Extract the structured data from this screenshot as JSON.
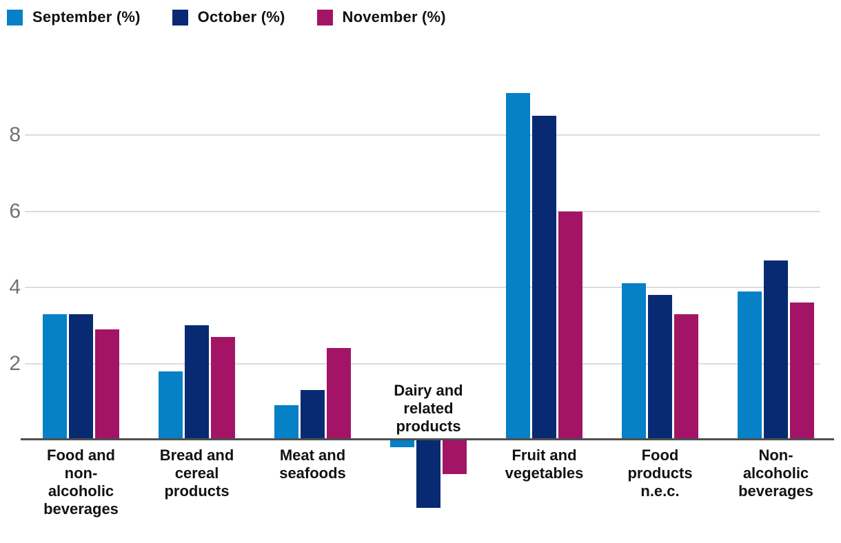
{
  "chart_data": {
    "type": "bar",
    "title": "",
    "categories": [
      "Food and non-alcoholic beverages",
      "Bread and cereal products",
      "Meat and seafoods",
      "Dairy and related products",
      "Fruit and vegetables",
      "Food products n.e.c.",
      "Non-alcoholic beverages"
    ],
    "category_label_lines": [
      [
        "Food and",
        "non-",
        "alcoholic",
        "beverages"
      ],
      [
        "Bread and",
        "cereal",
        "products"
      ],
      [
        "Meat and",
        "seafoods"
      ],
      [
        "Dairy and",
        "related",
        "products"
      ],
      [
        "Fruit and",
        "vegetables"
      ],
      [
        "Food",
        "products",
        "n.e.c."
      ],
      [
        "Non-",
        "alcoholic",
        "beverages"
      ]
    ],
    "series": [
      {
        "name": "September (%)",
        "color": "#0680c6",
        "values": [
          3.3,
          1.8,
          0.9,
          -0.2,
          9.1,
          4.1,
          3.9
        ]
      },
      {
        "name": "October (%)",
        "color": "#082a72",
        "values": [
          3.3,
          3.0,
          1.3,
          -1.8,
          8.5,
          3.8,
          4.7
        ]
      },
      {
        "name": "November (%)",
        "color": "#a31467",
        "values": [
          2.9,
          2.7,
          2.4,
          -0.9,
          6.0,
          3.3,
          3.6
        ]
      }
    ],
    "yticks": [
      2,
      4,
      6,
      8
    ],
    "ylim": [
      -2.1,
      9.6
    ],
    "grid": true,
    "legend_position": "top-left",
    "xlabel": "",
    "ylabel": ""
  },
  "colors": {
    "background": "#ffffff",
    "gridline": "#dcdcdc",
    "axis_line": "#4f4f4f",
    "tick_text": "#717171",
    "category_text": "#121212",
    "legend_text": "#111111"
  }
}
